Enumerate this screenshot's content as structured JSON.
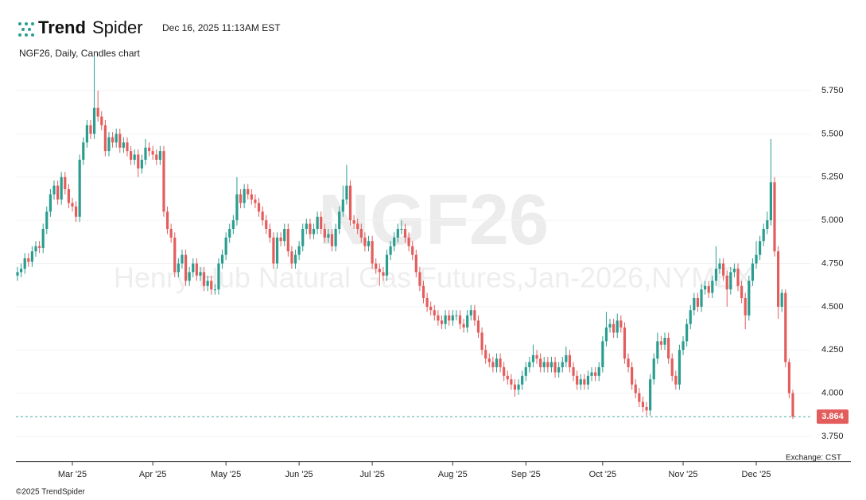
{
  "chart_data": {
    "type": "candlestick",
    "brand": [
      "Trend",
      "Spider"
    ],
    "timestamp": "Dec 16, 2025 11:13AM EST",
    "title": "NGF26, Daily, Candles chart",
    "watermark_symbol": "NGF26",
    "watermark_description": "Henry Hub Natural Gas Futures,Jan-2026,NYMEX",
    "exchange_note": "Exchange: CST",
    "copyright": "©2025 TrendSpider",
    "categories": [
      null,
      null,
      null,
      null,
      null,
      null,
      null,
      null,
      null,
      null,
      null,
      null,
      null,
      null,
      null,
      "Mar '25",
      null,
      null,
      null,
      null,
      null,
      null,
      null,
      null,
      null,
      null,
      null,
      null,
      null,
      null,
      null,
      null,
      null,
      null,
      null,
      null,
      null,
      "Apr '25",
      null,
      null,
      null,
      null,
      null,
      null,
      null,
      null,
      null,
      null,
      null,
      null,
      null,
      null,
      null,
      null,
      null,
      null,
      null,
      "May '25",
      null,
      null,
      null,
      null,
      null,
      null,
      null,
      null,
      null,
      null,
      null,
      null,
      null,
      null,
      null,
      null,
      null,
      null,
      null,
      "Jun '25",
      null,
      null,
      null,
      null,
      null,
      null,
      null,
      null,
      null,
      null,
      null,
      null,
      null,
      null,
      null,
      null,
      null,
      null,
      null,
      "Jul '25",
      null,
      null,
      null,
      null,
      null,
      null,
      null,
      null,
      null,
      null,
      null,
      null,
      null,
      null,
      null,
      null,
      null,
      null,
      null,
      null,
      null,
      "Aug '25",
      null,
      null,
      null,
      null,
      null,
      null,
      null,
      null,
      null,
      null,
      null,
      null,
      null,
      null,
      null,
      null,
      null,
      null,
      null,
      "Sep '25",
      null,
      null,
      null,
      null,
      null,
      null,
      null,
      null,
      null,
      null,
      null,
      null,
      null,
      null,
      null,
      null,
      null,
      null,
      null,
      null,
      "Oct '25",
      null,
      null,
      null,
      null,
      null,
      null,
      null,
      null,
      null,
      null,
      null,
      null,
      null,
      null,
      null,
      null,
      null,
      null,
      null,
      null,
      null,
      "Nov '25",
      null,
      null,
      null,
      null,
      null,
      null,
      null,
      null,
      null,
      null,
      null,
      null,
      null,
      null,
      null,
      null,
      null,
      null,
      null,
      "Dec '25",
      null,
      null,
      null,
      null,
      null,
      null,
      null,
      null,
      null,
      null
    ],
    "series": [
      {
        "up_color": "#2a9d8f",
        "down_color": "#e35d5d",
        "open": [
          4.68,
          4.7,
          4.72,
          4.78,
          4.76,
          4.82,
          4.85,
          4.84,
          4.95,
          5.05,
          5.15,
          5.2,
          5.12,
          5.25,
          5.18,
          5.1,
          5.08,
          5.02,
          5.35,
          5.45,
          5.55,
          5.5,
          5.65,
          5.6,
          5.55,
          5.4,
          5.48,
          5.45,
          5.5,
          5.42,
          5.45,
          5.4,
          5.35,
          5.38,
          5.3,
          5.35,
          5.42,
          5.4,
          5.38,
          5.35,
          5.4,
          5.05,
          4.95,
          4.9,
          4.7,
          4.75,
          4.8,
          4.65,
          4.7,
          4.75,
          4.68,
          4.7,
          4.62,
          4.65,
          4.6,
          4.6,
          4.75,
          4.8,
          4.9,
          4.95,
          5.0,
          5.15,
          5.1,
          5.18,
          5.15,
          5.12,
          5.1,
          5.05,
          5.0,
          4.95,
          4.9,
          4.75,
          4.9,
          4.88,
          4.95,
          4.82,
          4.75,
          4.8,
          4.85,
          4.95,
          4.98,
          4.92,
          4.95,
          5.02,
          4.95,
          4.9,
          4.92,
          4.85,
          4.95,
          5.05,
          5.12,
          5.2,
          5.0,
          4.98,
          4.95,
          4.9,
          4.85,
          4.88,
          4.75,
          4.72,
          4.7,
          4.68,
          4.8,
          4.85,
          4.9,
          4.95,
          4.95,
          4.9,
          4.85,
          4.8,
          4.7,
          4.62,
          4.55,
          4.5,
          4.48,
          4.45,
          4.42,
          4.4,
          4.45,
          4.42,
          4.45,
          4.45,
          4.4,
          4.38,
          4.45,
          4.48,
          4.42,
          4.35,
          4.25,
          4.2,
          4.18,
          4.15,
          4.2,
          4.15,
          4.1,
          4.08,
          4.05,
          4.02,
          4.05,
          4.1,
          4.15,
          4.18,
          4.22,
          4.2,
          4.15,
          4.18,
          4.15,
          4.18,
          4.12,
          4.15,
          4.18,
          4.22,
          4.15,
          4.1,
          4.05,
          4.08,
          4.05,
          4.1,
          4.12,
          4.1,
          4.15,
          4.3,
          4.38,
          4.4,
          4.35,
          4.42,
          4.38,
          4.2,
          4.15,
          4.05,
          4.0,
          3.95,
          3.92,
          3.9,
          4.08,
          4.2,
          4.3,
          4.28,
          4.32,
          4.2,
          4.1,
          4.05,
          4.25,
          4.3,
          4.4,
          4.48,
          4.55,
          4.5,
          4.6,
          4.62,
          4.58,
          4.65,
          4.72,
          4.75,
          4.68,
          4.6,
          4.7,
          4.72,
          4.62,
          4.55,
          4.45,
          4.65,
          4.75,
          4.8,
          4.88,
          4.95,
          5.0,
          5.22,
          4.82,
          4.5,
          4.58,
          4.18,
          4.0
        ],
        "high": [
          4.73,
          4.75,
          4.81,
          4.81,
          4.85,
          4.88,
          4.88,
          4.98,
          5.08,
          5.18,
          5.23,
          5.23,
          5.28,
          5.28,
          5.21,
          5.13,
          5.11,
          5.38,
          5.48,
          5.58,
          5.58,
          5.95,
          5.75,
          5.63,
          5.58,
          5.51,
          5.51,
          5.53,
          5.53,
          5.48,
          5.48,
          5.43,
          5.41,
          5.41,
          5.38,
          5.47,
          5.45,
          5.43,
          5.41,
          5.43,
          5.43,
          5.08,
          4.98,
          4.93,
          4.78,
          4.83,
          4.83,
          4.73,
          4.78,
          4.78,
          4.73,
          4.73,
          4.68,
          4.68,
          4.63,
          4.78,
          4.83,
          4.93,
          4.98,
          5.03,
          5.25,
          5.18,
          5.21,
          5.21,
          5.18,
          5.15,
          5.13,
          5.08,
          5.03,
          4.98,
          4.93,
          4.93,
          4.93,
          4.98,
          4.98,
          4.85,
          4.83,
          4.88,
          4.98,
          5.01,
          5.01,
          4.98,
          5.05,
          5.05,
          4.98,
          4.95,
          4.95,
          4.98,
          5.08,
          5.2,
          5.32,
          5.23,
          5.03,
          5.01,
          4.98,
          4.93,
          4.91,
          4.91,
          4.78,
          4.75,
          4.73,
          4.83,
          4.88,
          4.93,
          4.98,
          5.0,
          4.98,
          4.93,
          4.88,
          4.83,
          4.73,
          4.65,
          4.58,
          4.53,
          4.51,
          4.48,
          4.45,
          4.48,
          4.48,
          4.48,
          4.48,
          4.48,
          4.43,
          4.48,
          4.51,
          4.51,
          4.45,
          4.38,
          4.28,
          4.23,
          4.21,
          4.23,
          4.23,
          4.18,
          4.13,
          4.11,
          4.08,
          4.08,
          4.13,
          4.18,
          4.21,
          4.28,
          4.25,
          4.23,
          4.21,
          4.21,
          4.21,
          4.21,
          4.18,
          4.21,
          4.27,
          4.25,
          4.18,
          4.13,
          4.11,
          4.11,
          4.13,
          4.15,
          4.15,
          4.18,
          4.33,
          4.47,
          4.43,
          4.43,
          4.46,
          4.45,
          4.41,
          4.23,
          4.18,
          4.08,
          4.03,
          3.98,
          3.95,
          4.11,
          4.23,
          4.35,
          4.33,
          4.35,
          4.35,
          4.23,
          4.13,
          4.28,
          4.33,
          4.43,
          4.51,
          4.58,
          4.58,
          4.63,
          4.65,
          4.65,
          4.68,
          4.85,
          4.78,
          4.78,
          4.71,
          4.73,
          4.75,
          4.75,
          4.65,
          4.58,
          4.68,
          4.78,
          4.88,
          4.91,
          4.98,
          5.05,
          5.47,
          5.25,
          4.85,
          4.6,
          4.6,
          4.2,
          4.02
        ],
        "low": [
          4.65,
          4.67,
          4.69,
          4.73,
          4.73,
          4.79,
          4.81,
          4.81,
          4.92,
          5.02,
          5.12,
          5.09,
          5.09,
          5.15,
          5.07,
          5.05,
          4.99,
          4.99,
          5.32,
          5.42,
          5.47,
          5.47,
          5.57,
          5.52,
          5.37,
          5.37,
          5.42,
          5.42,
          5.39,
          5.39,
          5.37,
          5.32,
          5.32,
          5.25,
          5.27,
          5.32,
          5.37,
          5.35,
          5.32,
          5.32,
          5.02,
          4.92,
          4.87,
          4.67,
          4.67,
          4.72,
          4.62,
          4.62,
          4.67,
          4.65,
          4.65,
          4.59,
          4.59,
          4.57,
          4.57,
          4.57,
          4.72,
          4.77,
          4.87,
          4.92,
          4.97,
          5.07,
          5.07,
          5.12,
          5.09,
          5.07,
          5.02,
          4.97,
          4.92,
          4.87,
          4.72,
          4.72,
          4.85,
          4.85,
          4.79,
          4.72,
          4.72,
          4.77,
          4.82,
          4.92,
          4.89,
          4.89,
          4.92,
          4.92,
          4.87,
          4.87,
          4.82,
          4.82,
          4.92,
          5.02,
          5.09,
          4.97,
          4.95,
          4.92,
          4.87,
          4.82,
          4.82,
          4.72,
          4.69,
          4.62,
          4.65,
          4.65,
          4.77,
          4.82,
          4.87,
          4.92,
          4.87,
          4.82,
          4.77,
          4.67,
          4.59,
          4.52,
          4.47,
          4.45,
          4.42,
          4.39,
          4.37,
          4.37,
          4.39,
          4.39,
          4.42,
          4.37,
          4.35,
          4.35,
          4.42,
          4.39,
          4.32,
          4.22,
          4.17,
          4.15,
          4.12,
          4.12,
          4.12,
          4.07,
          4.05,
          4.02,
          3.98,
          3.99,
          4.02,
          4.07,
          4.12,
          4.15,
          4.17,
          4.12,
          4.12,
          4.12,
          4.12,
          4.09,
          4.09,
          4.12,
          4.15,
          4.12,
          4.07,
          4.02,
          4.02,
          4.02,
          4.02,
          4.07,
          4.07,
          4.07,
          4.12,
          4.27,
          4.35,
          4.32,
          4.32,
          4.35,
          4.17,
          4.12,
          4.02,
          3.97,
          3.92,
          3.89,
          3.87,
          3.87,
          4.05,
          4.17,
          4.25,
          4.25,
          4.17,
          4.07,
          4.02,
          4.02,
          4.22,
          4.27,
          4.37,
          4.45,
          4.47,
          4.47,
          4.57,
          4.55,
          4.55,
          4.62,
          4.69,
          4.65,
          4.5,
          4.57,
          4.67,
          4.59,
          4.52,
          4.37,
          4.42,
          4.62,
          4.72,
          4.77,
          4.85,
          4.92,
          4.97,
          4.79,
          4.43,
          4.47,
          4.15,
          3.97,
          3.85
        ],
        "close": [
          4.7,
          4.72,
          4.78,
          4.76,
          4.82,
          4.85,
          4.84,
          4.95,
          5.05,
          5.15,
          5.2,
          5.12,
          5.25,
          5.18,
          5.1,
          5.08,
          5.02,
          5.35,
          5.45,
          5.55,
          5.5,
          5.65,
          5.6,
          5.55,
          5.4,
          5.48,
          5.45,
          5.5,
          5.42,
          5.45,
          5.4,
          5.35,
          5.38,
          5.3,
          5.35,
          5.42,
          5.4,
          5.38,
          5.35,
          5.4,
          5.05,
          4.95,
          4.9,
          4.7,
          4.75,
          4.8,
          4.65,
          4.7,
          4.75,
          4.68,
          4.7,
          4.62,
          4.65,
          4.6,
          4.6,
          4.75,
          4.8,
          4.9,
          4.95,
          5.0,
          5.15,
          5.1,
          5.18,
          5.15,
          5.12,
          5.1,
          5.05,
          5.0,
          4.95,
          4.9,
          4.75,
          4.9,
          4.88,
          4.95,
          4.82,
          4.75,
          4.8,
          4.85,
          4.95,
          4.98,
          4.92,
          4.95,
          5.02,
          4.95,
          4.9,
          4.92,
          4.85,
          4.95,
          5.05,
          5.12,
          5.2,
          5.0,
          4.98,
          4.95,
          4.9,
          4.85,
          4.88,
          4.75,
          4.72,
          4.7,
          4.68,
          4.8,
          4.85,
          4.9,
          4.95,
          4.95,
          4.9,
          4.85,
          4.8,
          4.7,
          4.62,
          4.55,
          4.5,
          4.48,
          4.45,
          4.42,
          4.4,
          4.45,
          4.42,
          4.45,
          4.45,
          4.4,
          4.38,
          4.45,
          4.48,
          4.42,
          4.35,
          4.25,
          4.2,
          4.18,
          4.15,
          4.2,
          4.15,
          4.1,
          4.08,
          4.05,
          4.02,
          4.05,
          4.1,
          4.15,
          4.18,
          4.22,
          4.2,
          4.15,
          4.18,
          4.15,
          4.18,
          4.12,
          4.15,
          4.18,
          4.22,
          4.15,
          4.1,
          4.05,
          4.08,
          4.05,
          4.1,
          4.12,
          4.1,
          4.15,
          4.3,
          4.38,
          4.4,
          4.35,
          4.42,
          4.38,
          4.2,
          4.15,
          4.05,
          4.0,
          3.95,
          3.92,
          3.9,
          4.08,
          4.2,
          4.3,
          4.28,
          4.32,
          4.2,
          4.1,
          4.05,
          4.25,
          4.3,
          4.4,
          4.48,
          4.55,
          4.5,
          4.6,
          4.62,
          4.58,
          4.65,
          4.72,
          4.75,
          4.68,
          4.6,
          4.7,
          4.72,
          4.62,
          4.55,
          4.45,
          4.65,
          4.75,
          4.8,
          4.88,
          4.95,
          5.0,
          5.22,
          4.82,
          4.5,
          4.58,
          4.18,
          4.0,
          3.864
        ]
      }
    ],
    "last_price_color": "#e35d5d",
    "ylim": [
      3.6,
      6.0
    ],
    "yticks": [
      {
        "value": 3.75,
        "label": "3.750"
      },
      {
        "value": 4.0,
        "label": "4.000"
      },
      {
        "value": 4.25,
        "label": "4.250"
      },
      {
        "value": 4.5,
        "label": "4.500"
      },
      {
        "value": 4.75,
        "label": "4.750"
      },
      {
        "value": 5.0,
        "label": "5.000"
      },
      {
        "value": 5.25,
        "label": "5.250"
      },
      {
        "value": 5.5,
        "label": "5.500"
      },
      {
        "value": 5.75,
        "label": "5.750"
      }
    ],
    "grid": true
  }
}
